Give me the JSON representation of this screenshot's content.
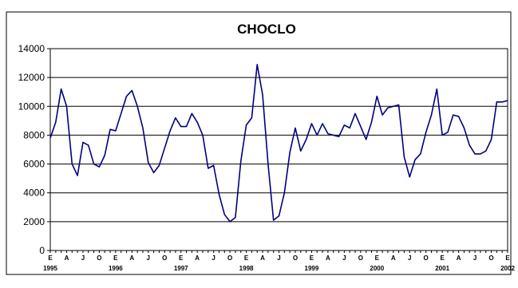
{
  "chart_data": {
    "type": "line",
    "title": "CHOCLO",
    "xlabel": "",
    "ylabel": "",
    "ylim": [
      0,
      14000
    ],
    "yticks": [
      0,
      2000,
      4000,
      6000,
      8000,
      10000,
      12000,
      14000
    ],
    "grid": true,
    "legend": "none",
    "line_color": "#000080",
    "month_labels": [
      "E",
      "A",
      "J",
      "O",
      "E",
      "A",
      "J",
      "O",
      "E",
      "A",
      "J",
      "O",
      "E",
      "A",
      "J",
      "O",
      "E",
      "A",
      "J",
      "O",
      "E",
      "A",
      "J",
      "O",
      "E",
      "A",
      "J",
      "O",
      "E"
    ],
    "year_labels": [
      {
        "label": "1995",
        "month_index": 0
      },
      {
        "label": "1996",
        "month_index": 12
      },
      {
        "label": "1997",
        "month_index": 24
      },
      {
        "label": "1998",
        "month_index": 36
      },
      {
        "label": "1999",
        "month_index": 48
      },
      {
        "label": "2000",
        "month_index": 60
      },
      {
        "label": "2001",
        "month_index": 72
      },
      {
        "label": "2002",
        "month_index": 84
      }
    ],
    "series": [
      {
        "values": [
          7800,
          8900,
          11200,
          10000,
          6000,
          5200,
          7500,
          7300,
          6000,
          5800,
          6600,
          8400,
          8300,
          9500,
          10700,
          11100,
          10000,
          8500,
          6100,
          5400,
          5900,
          7100,
          8300,
          9200,
          8600,
          8600,
          9500,
          8900,
          8000,
          5700,
          5900,
          3900,
          2500,
          2000,
          2300,
          6200,
          8700,
          9200,
          12900,
          10800,
          6000,
          2100,
          2400,
          4000,
          6800,
          8500,
          6900,
          7700,
          8800,
          8000,
          8800,
          8100,
          8000,
          7900,
          8700,
          8500,
          9500,
          8600,
          7700,
          8900,
          10700,
          9400,
          9900,
          10000,
          10100,
          6500,
          5100,
          6300,
          6700,
          8200,
          9400,
          11200,
          8000,
          8200,
          9400,
          9300,
          8500,
          7300,
          6700,
          6700,
          6900,
          7700,
          10300,
          10300,
          10400
        ]
      }
    ]
  }
}
